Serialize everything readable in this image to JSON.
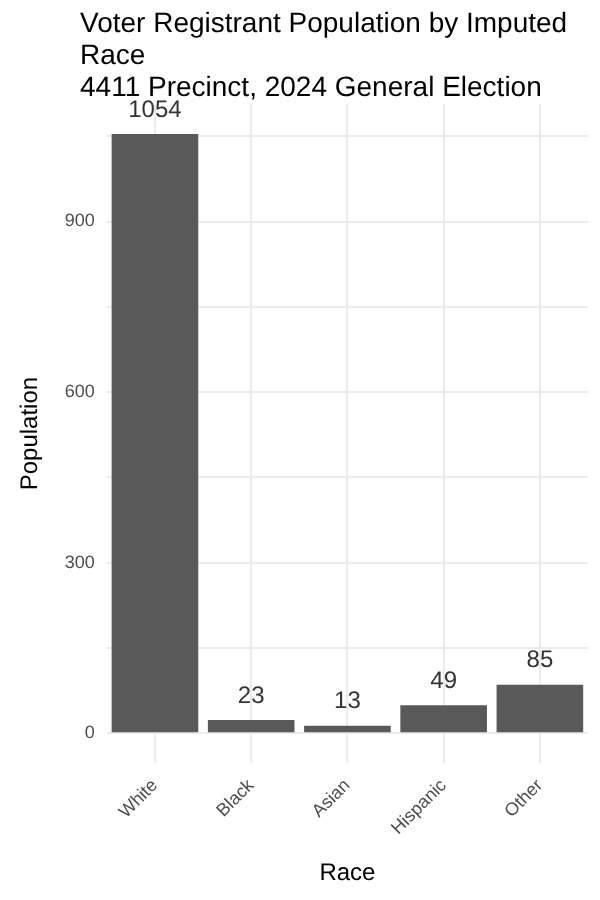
{
  "chart_data": {
    "type": "bar",
    "title": "Voter Registrant Population by Imputed Race",
    "subtitle": "4411 Precinct,  2024 General Election",
    "xlabel": "Race",
    "ylabel": "Population",
    "categories": [
      "White",
      "Black",
      "Asian",
      "Hispanic",
      "Other"
    ],
    "values": [
      1054,
      23,
      13,
      49,
      85
    ],
    "color": "#595959",
    "ylim": [
      -52.7,
      1106.7
    ],
    "yticks": [
      0,
      {
        "value": 150,
        "label": null
      },
      300,
      {
        "value": 450,
        "label": null
      },
      600,
      {
        "value": 750,
        "label": null
      },
      900,
      {
        "value": 1050,
        "label": null
      }
    ],
    "grid": true,
    "data_labels": true
  }
}
